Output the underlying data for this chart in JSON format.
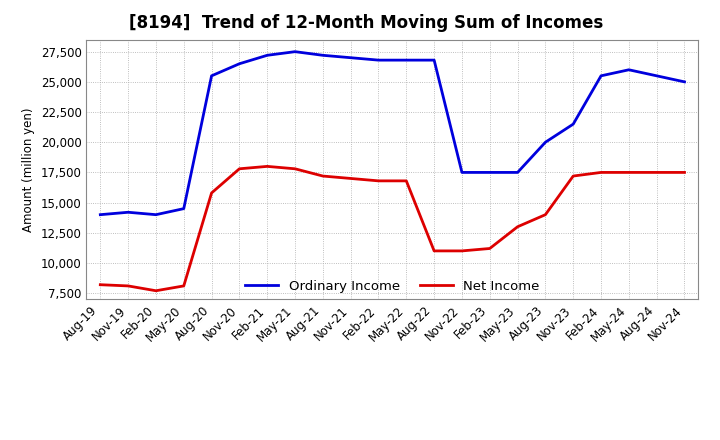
{
  "title": "[8194]  Trend of 12-Month Moving Sum of Incomes",
  "ylabel": "Amount (million yen)",
  "x_labels": [
    "Aug-19",
    "Nov-19",
    "Feb-20",
    "May-20",
    "Aug-20",
    "Nov-20",
    "Feb-21",
    "May-21",
    "Aug-21",
    "Nov-21",
    "Feb-22",
    "May-22",
    "Aug-22",
    "Nov-22",
    "Feb-23",
    "May-23",
    "Aug-23",
    "Nov-23",
    "Feb-24",
    "May-24",
    "Aug-24",
    "Nov-24"
  ],
  "ordinary_income": [
    14000,
    14200,
    14000,
    14500,
    25500,
    26500,
    27200,
    27500,
    27200,
    27000,
    26800,
    26800,
    26800,
    17500,
    17500,
    17500,
    20000,
    21500,
    25500,
    26000,
    25500,
    25000
  ],
  "net_income": [
    8200,
    8100,
    7700,
    8100,
    15800,
    17800,
    18000,
    17800,
    17200,
    17000,
    16800,
    16800,
    11000,
    11000,
    11200,
    13000,
    14000,
    17200,
    17500,
    17500,
    17500,
    17500
  ],
  "ordinary_color": "#0000dd",
  "net_color": "#dd0000",
  "ylim": [
    7000,
    28500
  ],
  "yticks": [
    7500,
    10000,
    12500,
    15000,
    17500,
    20000,
    22500,
    25000,
    27500
  ],
  "background_color": "#ffffff",
  "grid_color": "#aaaaaa",
  "title_fontsize": 12,
  "axis_fontsize": 8.5,
  "legend_fontsize": 9.5
}
